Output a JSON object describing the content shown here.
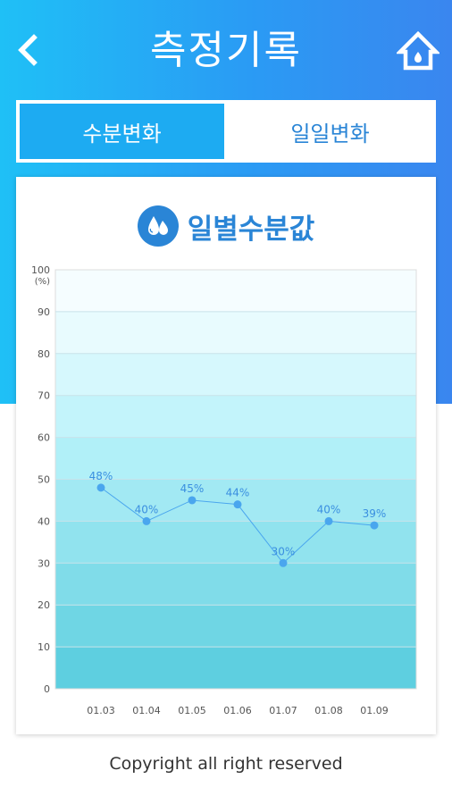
{
  "header": {
    "title": "측정기록",
    "back_icon": "chevron-left-icon",
    "home_icon": "home-icon"
  },
  "tabs": [
    {
      "label": "수분변화",
      "active": true
    },
    {
      "label": "일일변화",
      "active": false
    }
  ],
  "colors": {
    "accent": "#1dabf2",
    "brand_blue": "#2a85d6",
    "line": "#4aa6ee"
  },
  "chart_data": {
    "type": "line",
    "title": "일별수분값",
    "title_icon": "water-drop-icon",
    "unit_label": "(%)",
    "categories": [
      "01.03",
      "01.04",
      "01.05",
      "01.06",
      "01.07",
      "01.08",
      "01.09"
    ],
    "values": [
      48,
      40,
      45,
      44,
      30,
      40,
      39
    ],
    "data_labels": [
      "48%",
      "40%",
      "45%",
      "44%",
      "30%",
      "40%",
      "39%"
    ],
    "yticks": [
      0,
      10,
      20,
      30,
      40,
      50,
      60,
      70,
      80,
      90,
      100
    ],
    "ylim": [
      0,
      100
    ],
    "grid": true,
    "background": "banded gradient cyan, darker at bottom"
  },
  "footer": {
    "copyright": "Copyright all right reserved"
  }
}
